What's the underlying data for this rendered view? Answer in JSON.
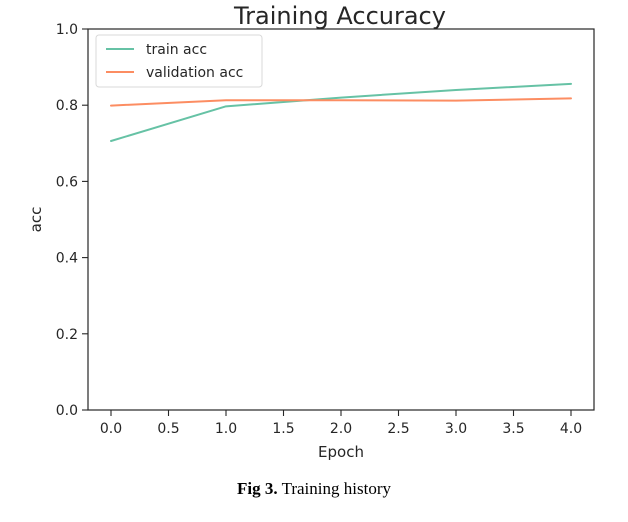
{
  "chart_data": {
    "type": "line",
    "title": "Training Accuracy",
    "xlabel": "Epoch",
    "ylabel": "acc",
    "x": [
      0,
      1,
      2,
      3,
      4
    ],
    "series": [
      {
        "name": "train acc",
        "values": [
          0.706,
          0.797,
          0.82,
          0.84,
          0.856
        ],
        "color": "#66c2a5"
      },
      {
        "name": "validation acc",
        "values": [
          0.799,
          0.813,
          0.813,
          0.812,
          0.818
        ],
        "color": "#fc8d62"
      }
    ],
    "xlim": [
      -0.2,
      4.2
    ],
    "ylim": [
      0.0,
      1.0
    ],
    "xticks": [
      0.0,
      0.5,
      1.0,
      1.5,
      2.0,
      2.5,
      3.0,
      3.5,
      4.0
    ],
    "xtick_labels": [
      "0.0",
      "0.5",
      "1.0",
      "1.5",
      "2.0",
      "2.5",
      "3.0",
      "3.5",
      "4.0"
    ],
    "yticks": [
      0.0,
      0.2,
      0.4,
      0.6,
      0.8,
      1.0
    ],
    "ytick_labels": [
      "0.0",
      "0.2",
      "0.4",
      "0.6",
      "0.8",
      "1.0"
    ],
    "grid": false,
    "legend_position": "top-left"
  },
  "caption": {
    "label": "Fig 3.",
    "text": " Training history"
  }
}
